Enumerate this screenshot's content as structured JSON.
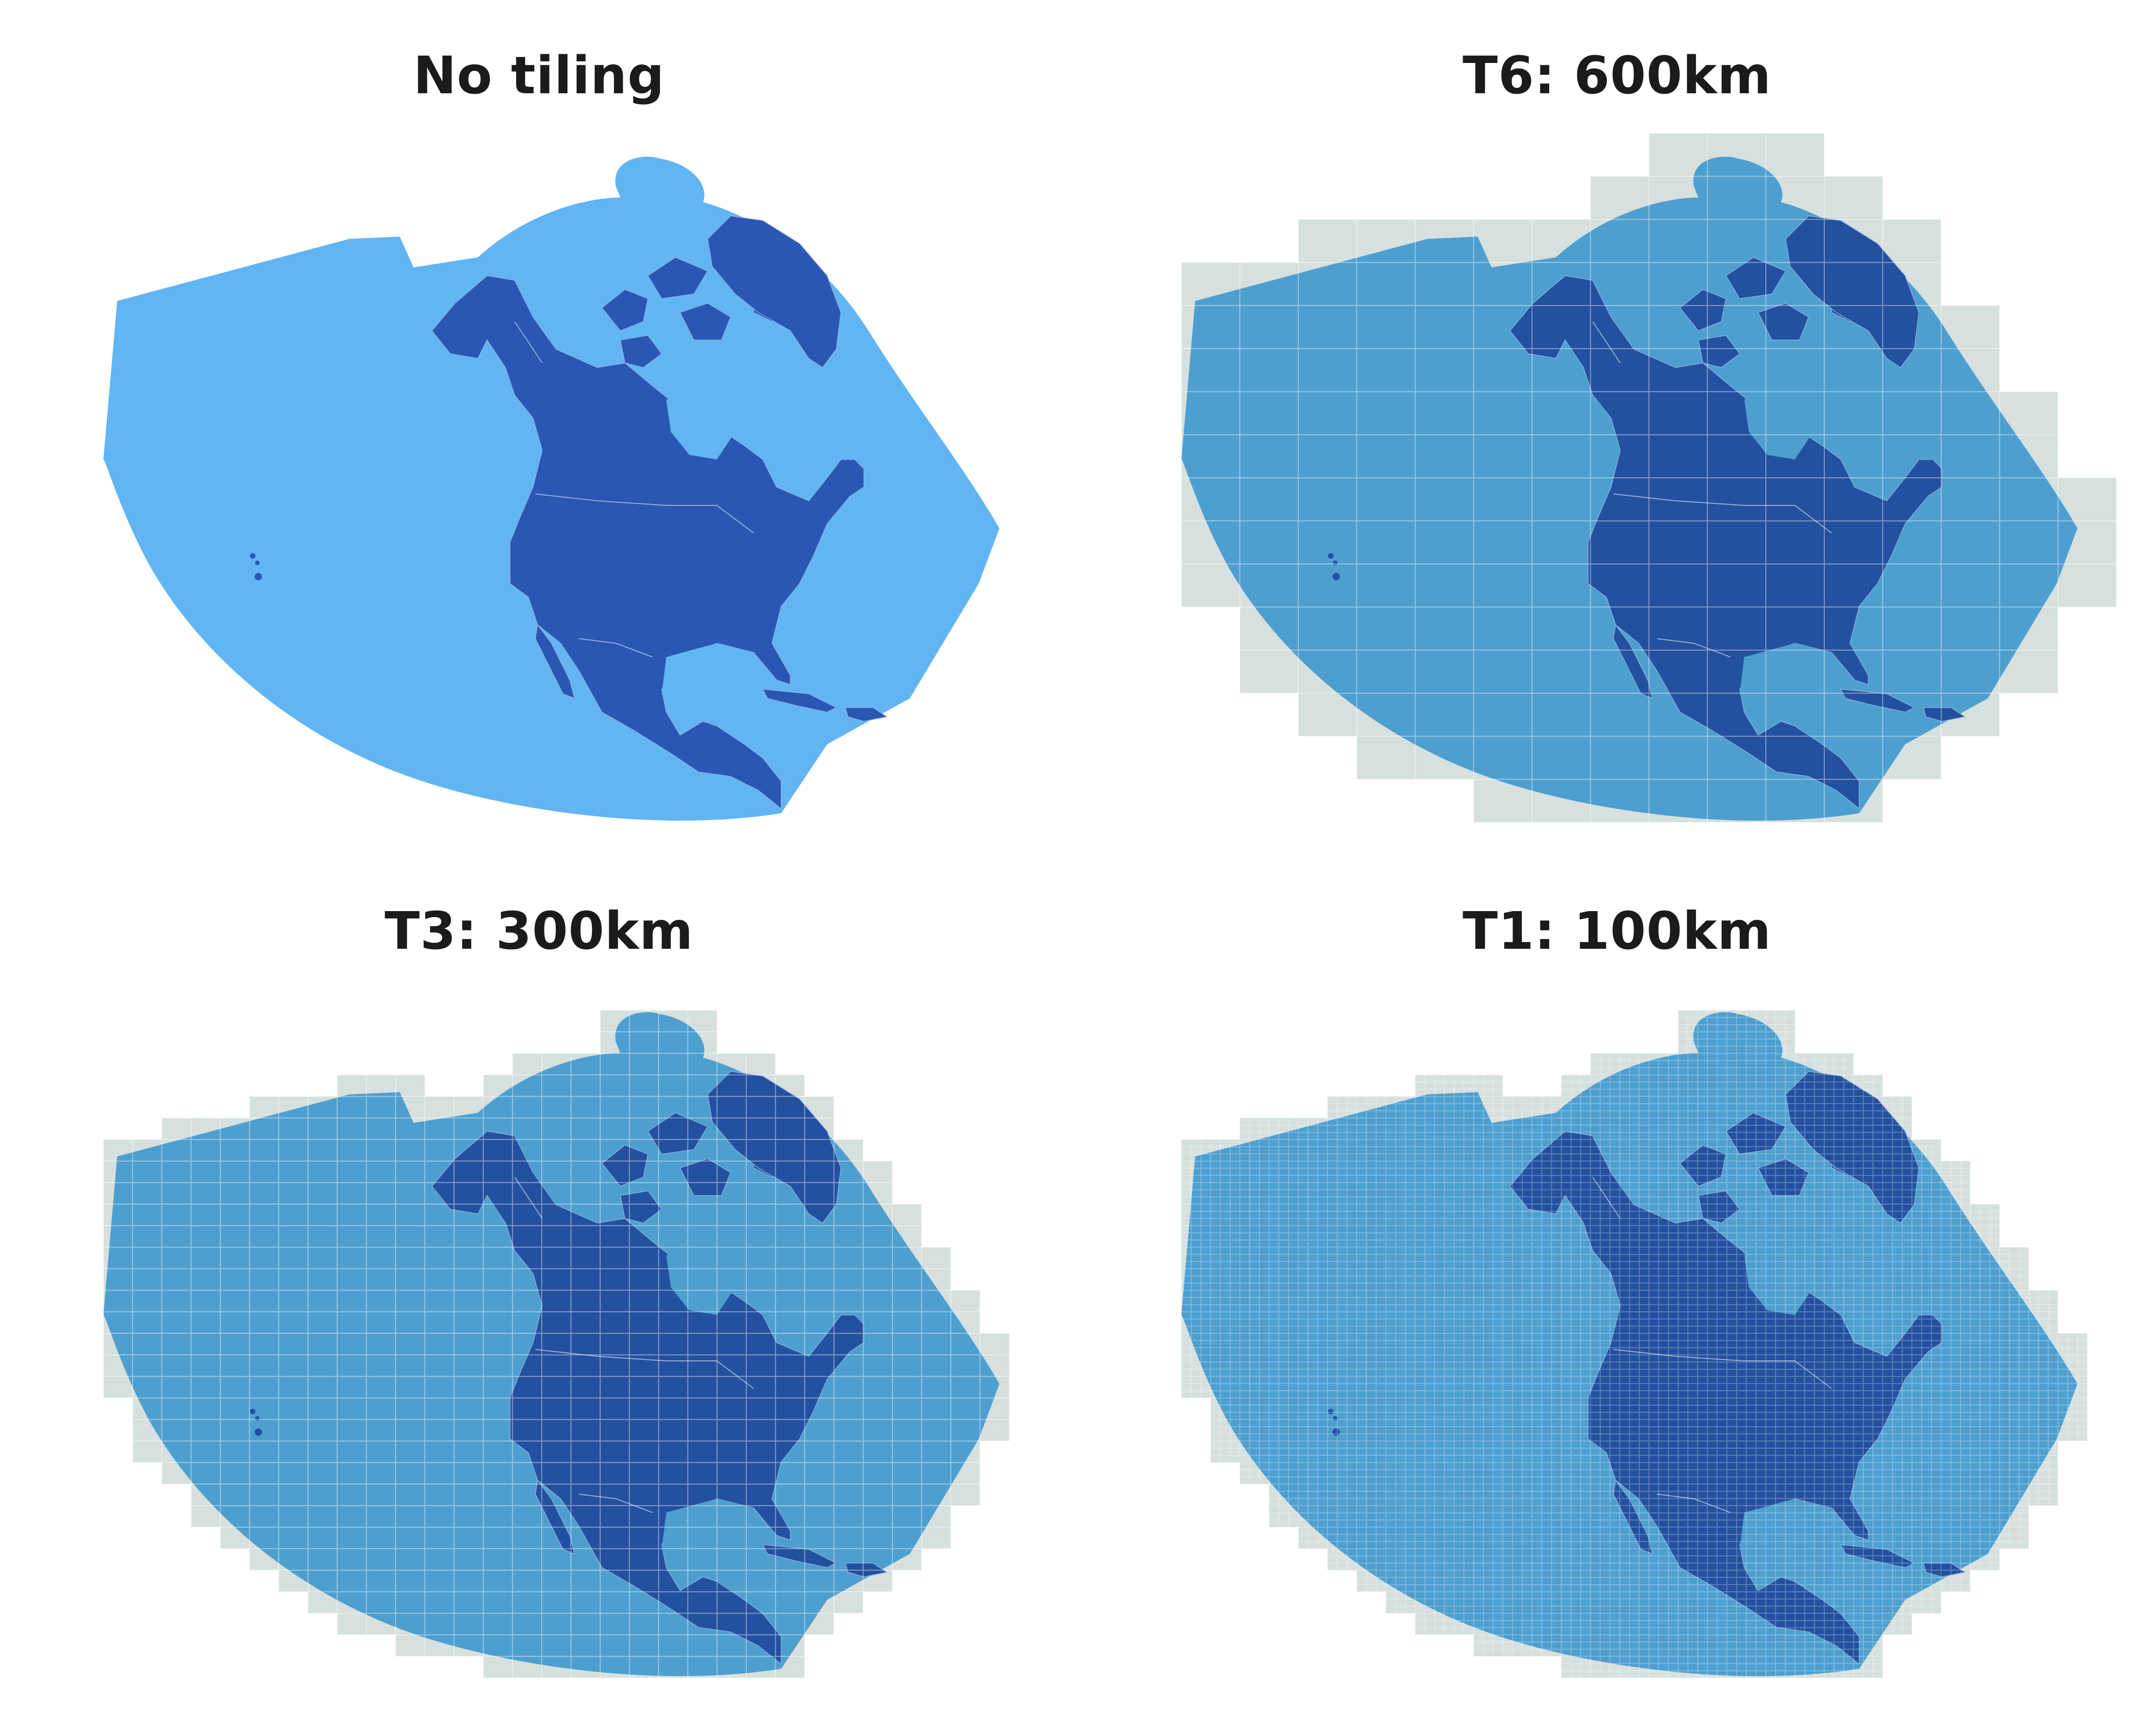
{
  "panels": [
    {
      "id": "no-tiling",
      "title": "No tiling",
      "tiled": false,
      "grid_steps": 0,
      "sub_steps": 0
    },
    {
      "id": "t6",
      "title": "T6: 600km",
      "tiled": true,
      "grid_steps": 16,
      "sub_steps": 1
    },
    {
      "id": "t3",
      "title": "T3: 300km",
      "tiled": true,
      "grid_steps": 32,
      "sub_steps": 1
    },
    {
      "id": "t1",
      "title": "T1: 100km",
      "tiled": true,
      "grid_steps": 32,
      "sub_steps": 3
    }
  ],
  "colors": {
    "ocean_plain": "#62b5f3",
    "land_plain": "#2a57b3",
    "ocean_tiled": "#4d9fd0",
    "land_tiled": "#23519f",
    "tile_halo": "#d6e0de",
    "grid_line": "#ffffff"
  }
}
